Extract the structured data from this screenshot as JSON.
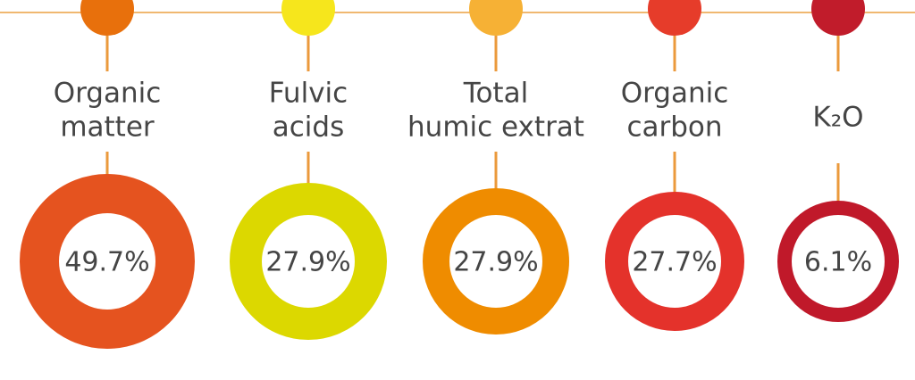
{
  "items": [
    {
      "label": [
        "Organic",
        "matter"
      ],
      "value": "49.7%"
    },
    {
      "label": [
        "Fulvic",
        "acids"
      ],
      "value": "27.9%"
    },
    {
      "label": [
        "Total",
        "humic extrat"
      ],
      "value": "27.9%"
    },
    {
      "label": [
        "Organic",
        "carbon"
      ],
      "value": "27.7%"
    },
    {
      "label": [
        "K₂O"
      ],
      "value": "6.1%"
    }
  ]
}
